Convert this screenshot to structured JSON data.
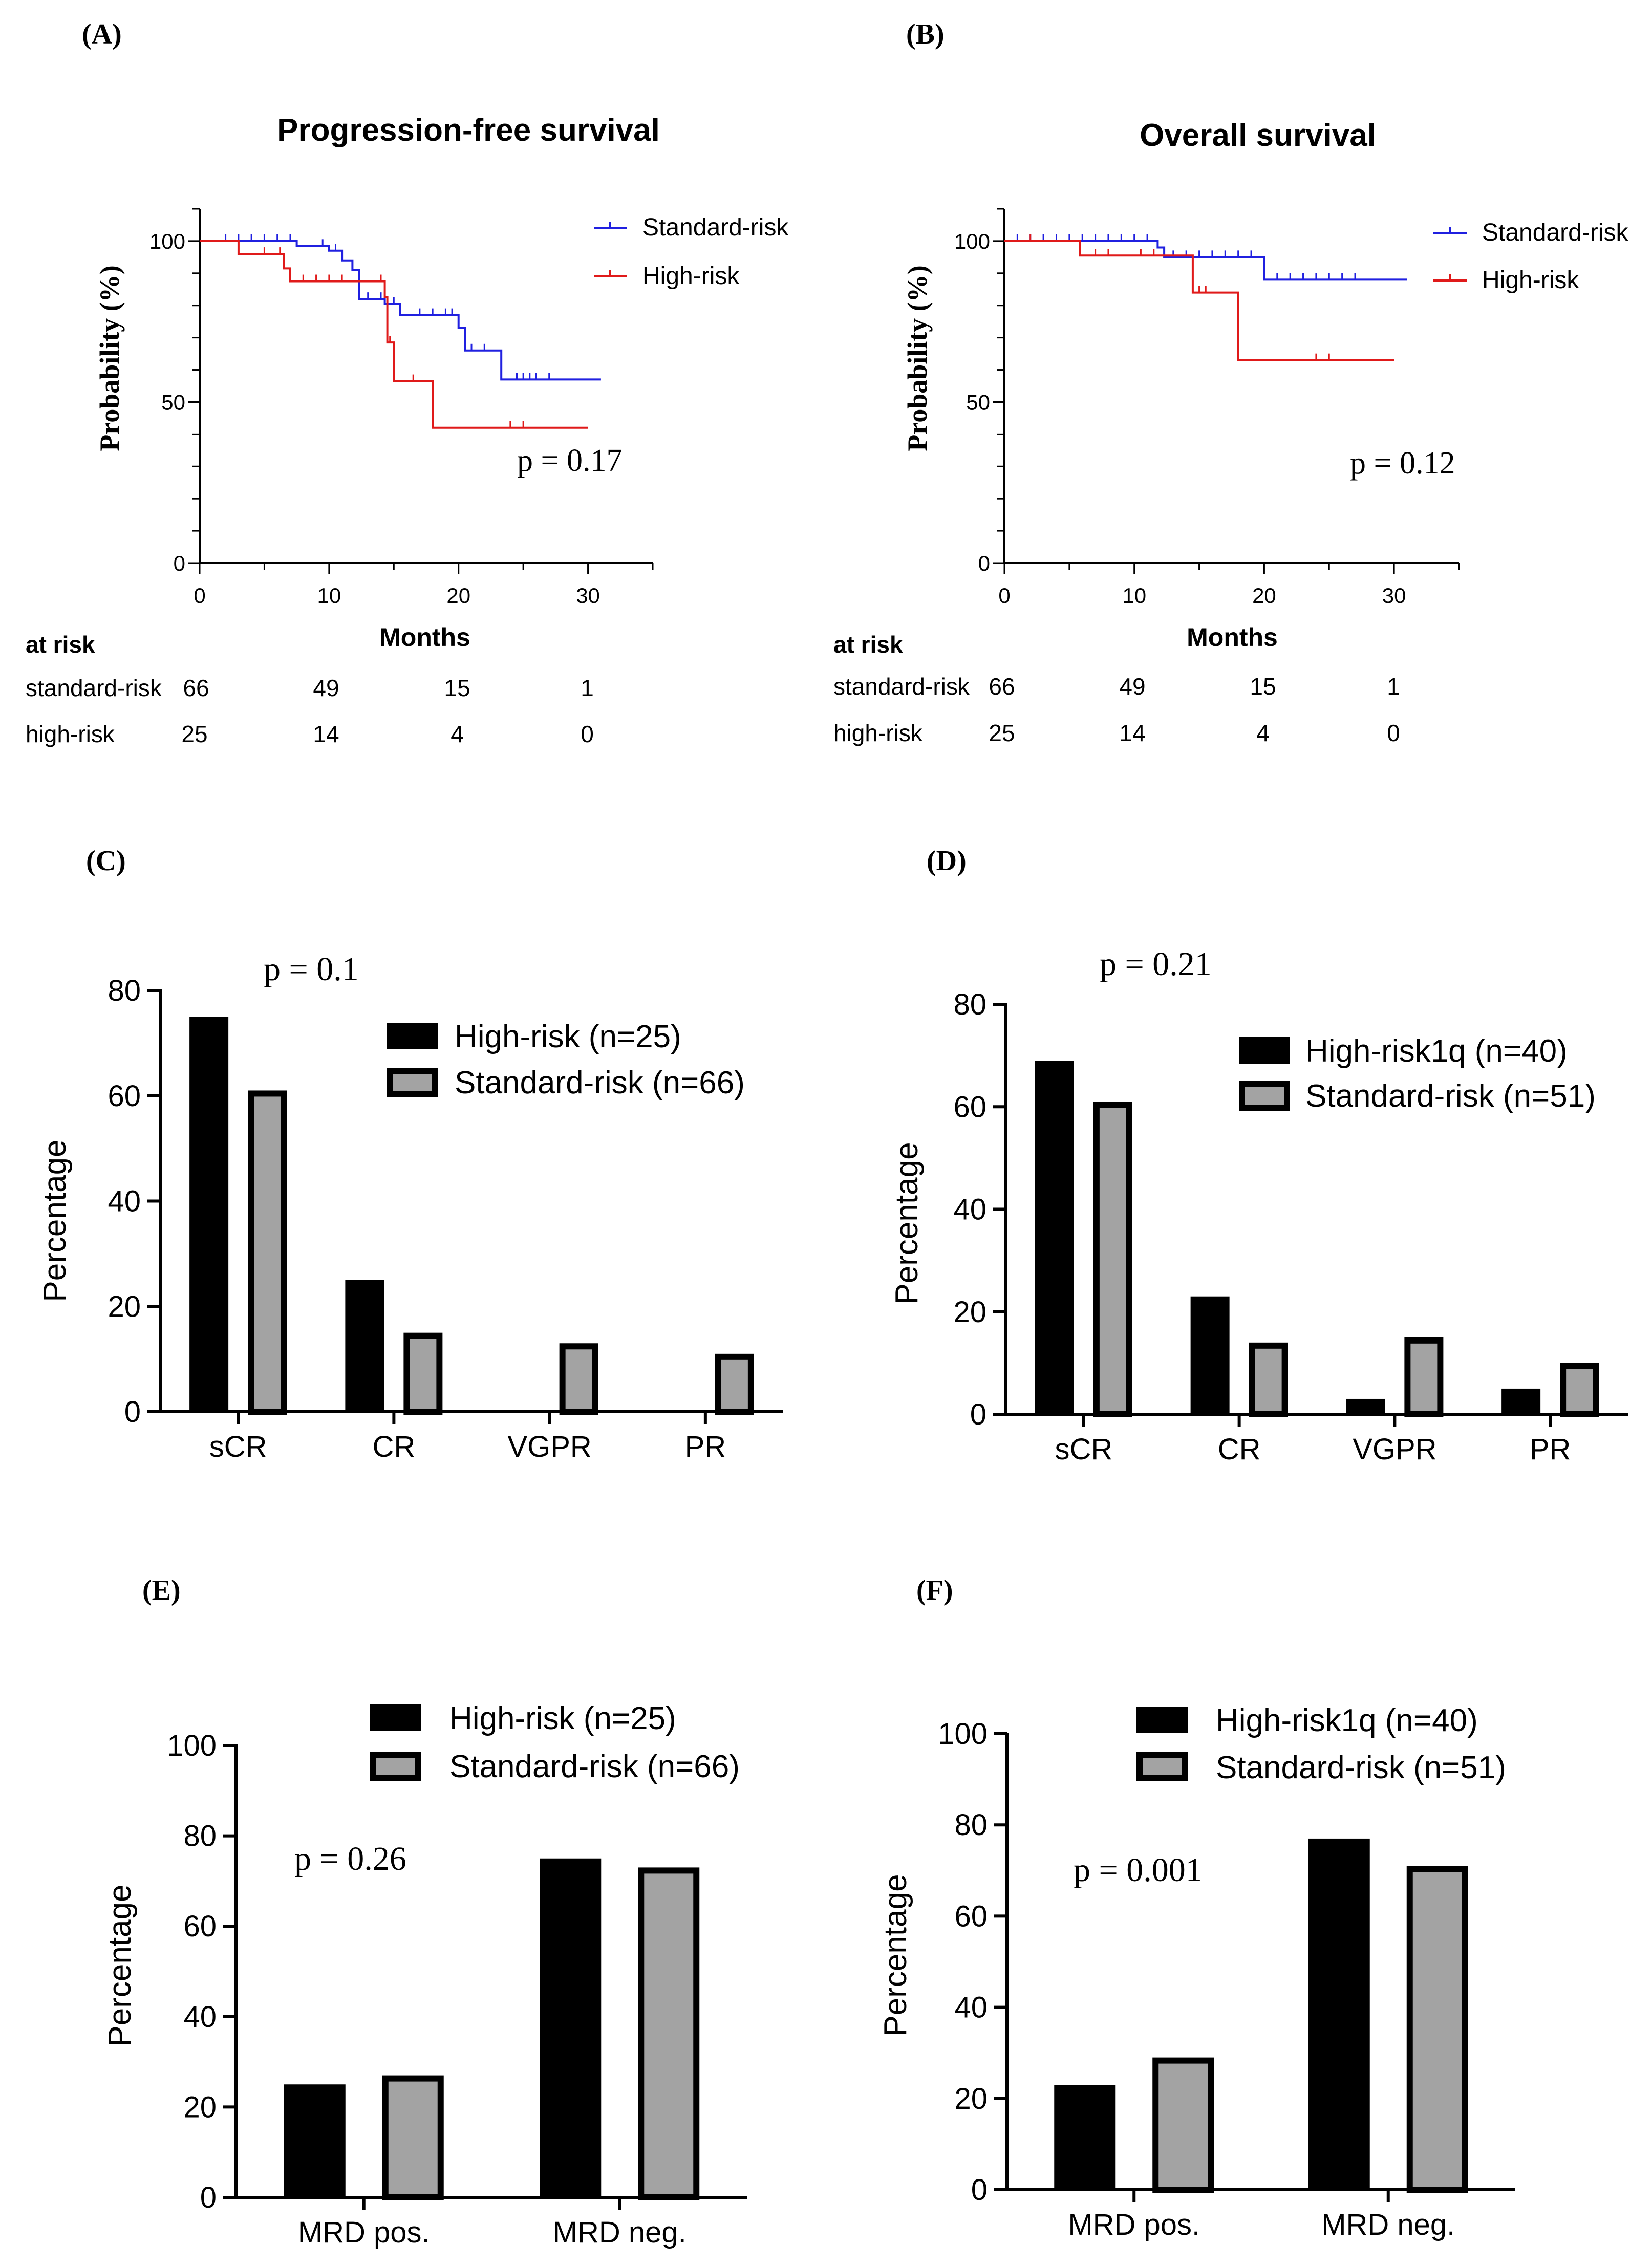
{
  "colors": {
    "standard": "#2020e0",
    "high": "#e01a1a",
    "black_bar": "#000000",
    "grey_bar": "#a3a3a3",
    "axis": "#000000"
  },
  "chart_data": [
    {
      "panel": "(A)",
      "type": "line",
      "title": "Progression-free survival",
      "xlabel": "Months",
      "ylabel": "Probability (%)",
      "xlim": [
        0,
        35
      ],
      "ylim": [
        0,
        110
      ],
      "xticks": [
        "0",
        "10",
        "20",
        "30"
      ],
      "yticks": [
        "0",
        "50",
        "100"
      ],
      "annotation": "p = 0.17",
      "series": [
        {
          "name": "Standard-risk",
          "color": "#2020e0",
          "steps": [
            [
              0,
              100
            ],
            [
              7.5,
              100
            ],
            [
              7.5,
              98.5
            ],
            [
              10,
              98.5
            ],
            [
              10,
              97
            ],
            [
              11,
              97
            ],
            [
              11,
              94
            ],
            [
              11.8,
              94
            ],
            [
              11.8,
              91
            ],
            [
              12.3,
              91
            ],
            [
              12.3,
              82
            ],
            [
              14.3,
              82
            ],
            [
              14.3,
              80.5
            ],
            [
              15.5,
              80.5
            ],
            [
              15.5,
              77
            ],
            [
              20,
              77
            ],
            [
              20,
              73
            ],
            [
              20.5,
              73
            ],
            [
              20.5,
              66
            ],
            [
              23.3,
              66
            ],
            [
              23.3,
              57
            ],
            [
              31,
              57
            ]
          ],
          "censors": [
            [
              2,
              100
            ],
            [
              3,
              100
            ],
            [
              4,
              100
            ],
            [
              5,
              100
            ],
            [
              6,
              100
            ],
            [
              7,
              100
            ],
            [
              9.5,
              98.5
            ],
            [
              10.5,
              97
            ],
            [
              13,
              82
            ],
            [
              14,
              82
            ],
            [
              15,
              80.5
            ],
            [
              17,
              77
            ],
            [
              18,
              77
            ],
            [
              19,
              77
            ],
            [
              19.5,
              77
            ],
            [
              21,
              66
            ],
            [
              22,
              66
            ],
            [
              24.5,
              57
            ],
            [
              25,
              57
            ],
            [
              25.5,
              57
            ],
            [
              26,
              57
            ],
            [
              27,
              57
            ]
          ]
        },
        {
          "name": "High-risk",
          "color": "#e01a1a",
          "steps": [
            [
              0,
              100
            ],
            [
              3,
              100
            ],
            [
              3,
              96
            ],
            [
              6.5,
              96
            ],
            [
              6.5,
              91.5
            ],
            [
              7,
              91.5
            ],
            [
              7,
              87.5
            ],
            [
              14.3,
              87.5
            ],
            [
              14.3,
              82.5
            ],
            [
              14.5,
              82.5
            ],
            [
              14.5,
              68.5
            ],
            [
              15,
              68.5
            ],
            [
              15,
              56.5
            ],
            [
              18,
              56.5
            ],
            [
              18,
              42
            ],
            [
              30,
              42
            ]
          ],
          "censors": [
            [
              5,
              96
            ],
            [
              6.2,
              96
            ],
            [
              8,
              87.5
            ],
            [
              9,
              87.5
            ],
            [
              10,
              87.5
            ],
            [
              11,
              87.5
            ],
            [
              14,
              87.5
            ],
            [
              14.7,
              68.5
            ],
            [
              16.5,
              56.5
            ],
            [
              24,
              42
            ],
            [
              25,
              42
            ]
          ]
        }
      ],
      "at_risk": {
        "label": "at risk",
        "months": [
          0,
          10,
          20,
          30
        ],
        "rows": [
          {
            "name": "standard-risk",
            "values": [
              "66",
              "49",
              "15",
              "1"
            ]
          },
          {
            "name": "high-risk",
            "values": [
              "25",
              "14",
              "4",
              "0"
            ]
          }
        ]
      }
    },
    {
      "panel": "(B)",
      "type": "line",
      "title": "Overall survival",
      "xlabel": "Months",
      "ylabel": "Probability (%)",
      "xlim": [
        0,
        35
      ],
      "ylim": [
        0,
        110
      ],
      "xticks": [
        "0",
        "10",
        "20",
        "30"
      ],
      "yticks": [
        "0",
        "50",
        "100"
      ],
      "annotation": "p = 0.12",
      "series": [
        {
          "name": "Standard-risk",
          "color": "#2020e0",
          "steps": [
            [
              0,
              100
            ],
            [
              11.8,
              100
            ],
            [
              11.8,
              98
            ],
            [
              12.3,
              98
            ],
            [
              12.3,
              95
            ],
            [
              20,
              95
            ],
            [
              20,
              88
            ],
            [
              31,
              88
            ]
          ],
          "censors": [
            [
              1,
              100
            ],
            [
              2,
              100
            ],
            [
              3,
              100
            ],
            [
              4,
              100
            ],
            [
              5,
              100
            ],
            [
              6,
              100
            ],
            [
              7,
              100
            ],
            [
              8,
              100
            ],
            [
              9,
              100
            ],
            [
              10,
              100
            ],
            [
              11,
              100
            ],
            [
              13,
              95
            ],
            [
              14,
              95
            ],
            [
              15,
              95
            ],
            [
              16,
              95
            ],
            [
              17,
              95
            ],
            [
              18,
              95
            ],
            [
              19,
              95
            ],
            [
              21,
              88
            ],
            [
              22,
              88
            ],
            [
              23,
              88
            ],
            [
              24,
              88
            ],
            [
              25,
              88
            ],
            [
              26,
              88
            ],
            [
              27,
              88
            ]
          ]
        },
        {
          "name": "High-risk",
          "color": "#e01a1a",
          "steps": [
            [
              0,
              100
            ],
            [
              5.8,
              100
            ],
            [
              5.8,
              95.5
            ],
            [
              14.5,
              95.5
            ],
            [
              14.5,
              84
            ],
            [
              18,
              84
            ],
            [
              18,
              63
            ],
            [
              30,
              63
            ]
          ],
          "censors": [
            [
              2,
              100
            ],
            [
              7,
              95.5
            ],
            [
              8,
              95.5
            ],
            [
              10.5,
              95.5
            ],
            [
              11.5,
              95.5
            ],
            [
              15,
              84
            ],
            [
              15.5,
              84
            ],
            [
              24,
              63
            ],
            [
              25,
              63
            ]
          ]
        }
      ],
      "at_risk": {
        "label": "at risk",
        "months": [
          0,
          10,
          20,
          30
        ],
        "rows": [
          {
            "name": "standard-risk",
            "values": [
              "66",
              "49",
              "15",
              "1"
            ]
          },
          {
            "name": "high-risk",
            "values": [
              "25",
              "14",
              "4",
              "0"
            ]
          }
        ]
      }
    },
    {
      "panel": "(C)",
      "type": "bar",
      "ylabel": "Percentage",
      "ylim": [
        0,
        80
      ],
      "yticks": [
        "0",
        "20",
        "40",
        "60",
        "80"
      ],
      "categories": [
        "sCR",
        "CR",
        "VGPR",
        "PR"
      ],
      "annotation": "p = 0.1",
      "series": [
        {
          "name": "High-risk (n=25)",
          "style": "black",
          "values": [
            75,
            25,
            0,
            0
          ]
        },
        {
          "name": "Standard-risk (n=66)",
          "style": "grey",
          "values": [
            61,
            15,
            13,
            11
          ]
        }
      ]
    },
    {
      "panel": "(D)",
      "type": "bar",
      "ylabel": "Percentage",
      "ylim": [
        0,
        80
      ],
      "yticks": [
        "0",
        "20",
        "40",
        "60",
        "80"
      ],
      "categories": [
        "sCR",
        "CR",
        "VGPR",
        "PR"
      ],
      "annotation": "p = 0.21",
      "series": [
        {
          "name": "High-risk1q (n=40)",
          "style": "black",
          "values": [
            69,
            23,
            3,
            5
          ]
        },
        {
          "name": "Standard-risk (n=51)",
          "style": "grey",
          "values": [
            61,
            14,
            15,
            10
          ]
        }
      ]
    },
    {
      "panel": "(E)",
      "type": "bar",
      "ylabel": "Percentage",
      "ylim": [
        0,
        100
      ],
      "yticks": [
        "0",
        "20",
        "40",
        "60",
        "80",
        "100"
      ],
      "categories": [
        "MRD pos.",
        "MRD neg."
      ],
      "annotation": "p = 0.26",
      "series": [
        {
          "name": "High-risk (n=25)",
          "style": "black",
          "values": [
            25,
            75
          ]
        },
        {
          "name": "Standard-risk (n=66)",
          "style": "grey",
          "values": [
            27,
            73
          ]
        }
      ]
    },
    {
      "panel": "(F)",
      "type": "bar",
      "ylabel": "Percentage",
      "ylim": [
        0,
        100
      ],
      "yticks": [
        "0",
        "20",
        "40",
        "60",
        "80",
        "100"
      ],
      "categories": [
        "MRD pos.",
        "MRD neg."
      ],
      "annotation": "p = 0.001",
      "series": [
        {
          "name": "High-risk1q (n=40)",
          "style": "black",
          "values": [
            23,
            77
          ]
        },
        {
          "name": "Standard-risk (n=51)",
          "style": "grey",
          "values": [
            29,
            71
          ]
        }
      ]
    }
  ]
}
